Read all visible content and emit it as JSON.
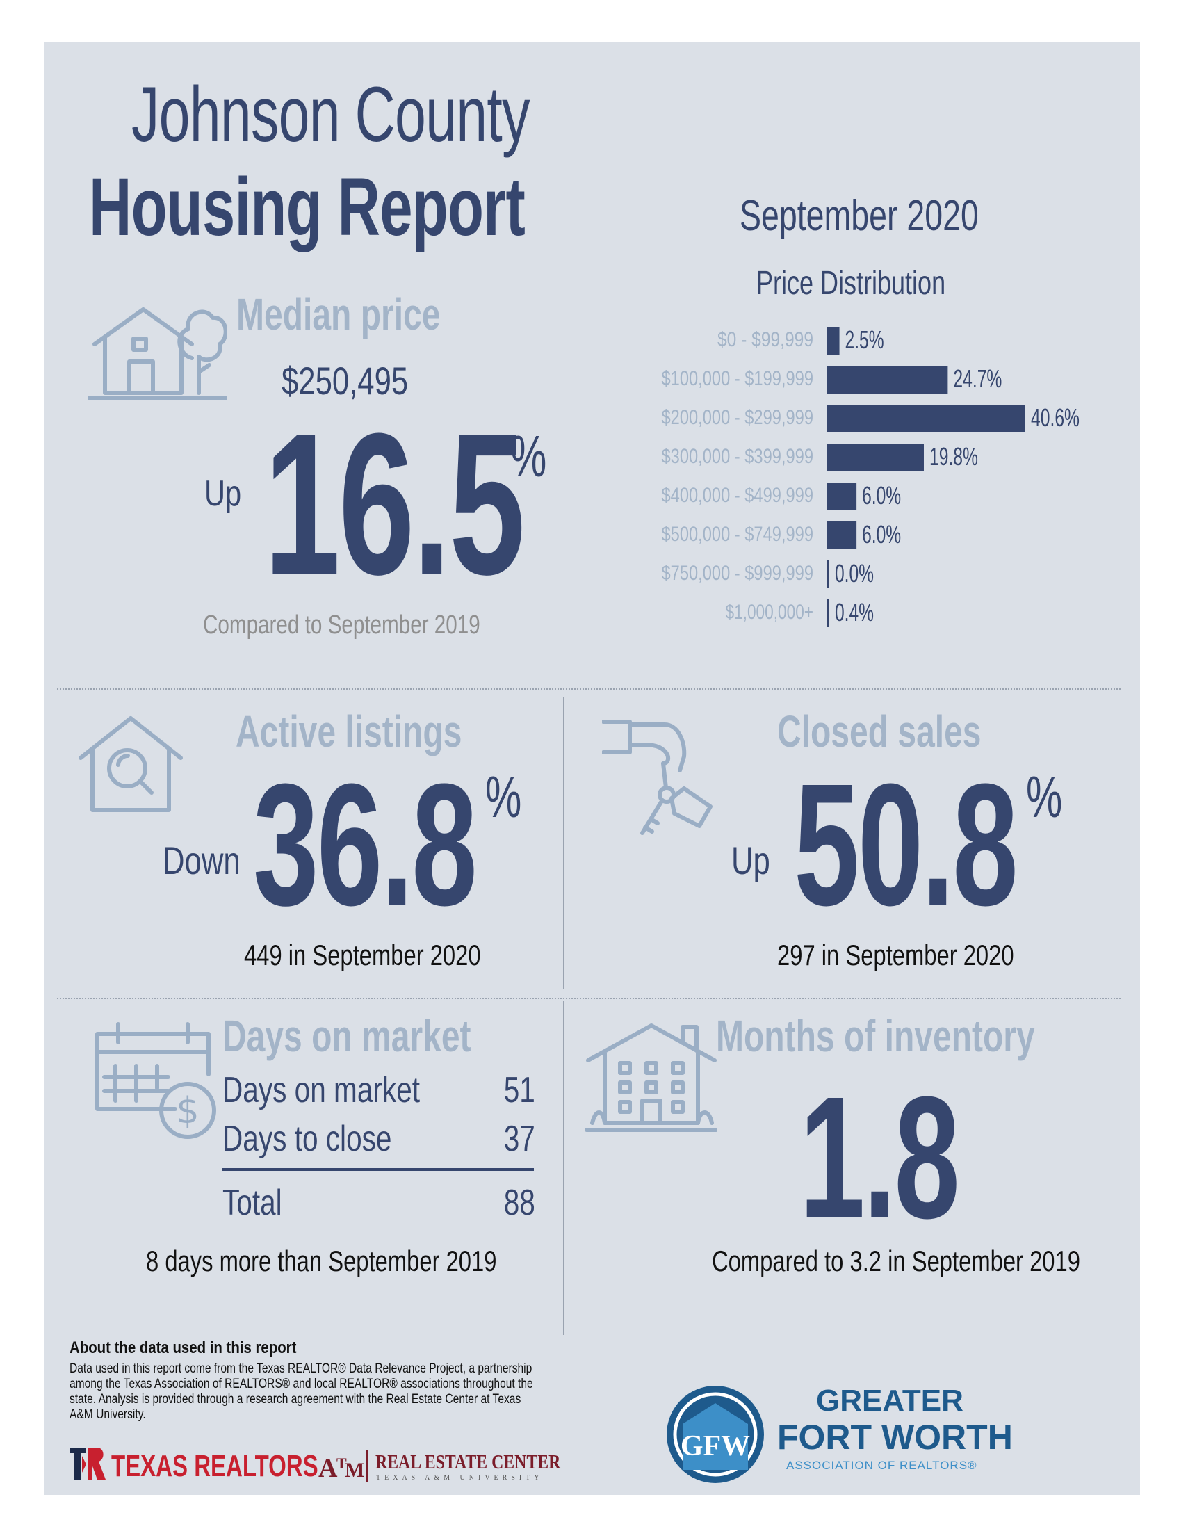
{
  "header": {
    "title_line1": "Johnson County",
    "title_line2": "Housing Report",
    "month": "September 2020"
  },
  "median_price": {
    "label": "Median price",
    "value": "$250,495",
    "direction": "Up",
    "percent": "16.5",
    "percent_sign": "%",
    "compare": "Compared to September 2019",
    "icon": "house-tree-icon"
  },
  "chart_data": {
    "type": "bar",
    "orientation": "horizontal",
    "title": "Price Distribution",
    "categories": [
      "$0 - $99,999",
      "$100,000 - $199,999",
      "$200,000 - $299,999",
      "$300,000 - $399,999",
      "$400,000 - $499,999",
      "$500,000 - $749,999",
      "$750,000 - $999,999",
      "$1,000,000+"
    ],
    "values": [
      2.5,
      24.7,
      40.6,
      19.8,
      6.0,
      6.0,
      0.0,
      0.4
    ],
    "value_labels": [
      "2.5%",
      "24.7%",
      "40.6%",
      "19.8%",
      "6.0%",
      "6.0%",
      "0.0%",
      "0.4%"
    ],
    "xlim": [
      0,
      40.6
    ],
    "grid": false,
    "bar_color": "#36466e"
  },
  "active_listings": {
    "label": "Active listings",
    "direction": "Down",
    "percent": "36.8",
    "percent_sign": "%",
    "sub": "449 in September 2020",
    "icon": "house-search-icon"
  },
  "closed_sales": {
    "label": "Closed sales",
    "direction": "Up",
    "percent": "50.8",
    "percent_sign": "%",
    "sub": "297 in September 2020",
    "icon": "hand-keys-icon"
  },
  "days_on_market": {
    "label": "Days on market",
    "rows": [
      {
        "label": "Days on market",
        "value": "51"
      },
      {
        "label": "Days to close",
        "value": "37"
      }
    ],
    "total": {
      "label": "Total",
      "value": "88"
    },
    "sub": "8 days more than September 2019",
    "icon": "calendar-dollar-icon"
  },
  "months_inventory": {
    "label": "Months of inventory",
    "value": "1.8",
    "sub": "Compared to 3.2 in September 2019",
    "icon": "building-icon"
  },
  "about": {
    "title": "About the data used in this report",
    "text": "Data used in this report come from the Texas REALTOR® Data Relevance Project, a partnership among the Texas Association of REALTORS® and local REALTOR® associations throughout the state. Analysis is provided through a research agreement with the Real Estate Center at Texas A&M University."
  },
  "logos": {
    "texas_realtors": "TEXAS REALTORS",
    "rec_main": "REAL ESTATE CENTER",
    "rec_sub": "TEXAS A&M UNIVERSITY",
    "gfw_line1": "GREATER",
    "gfw_line2": "FORT WORTH",
    "gfw_line3": "ASSOCIATION OF REALTORS®",
    "brand_red": "#c8202f",
    "brand_maroon": "#7b1d2a",
    "brand_blue": "#1e5a8c"
  },
  "colors": {
    "panel_bg": "#dbe0e7",
    "navy": "#36466e",
    "label_light": "#a3b4c8",
    "icon_stroke": "#9aaec5"
  }
}
